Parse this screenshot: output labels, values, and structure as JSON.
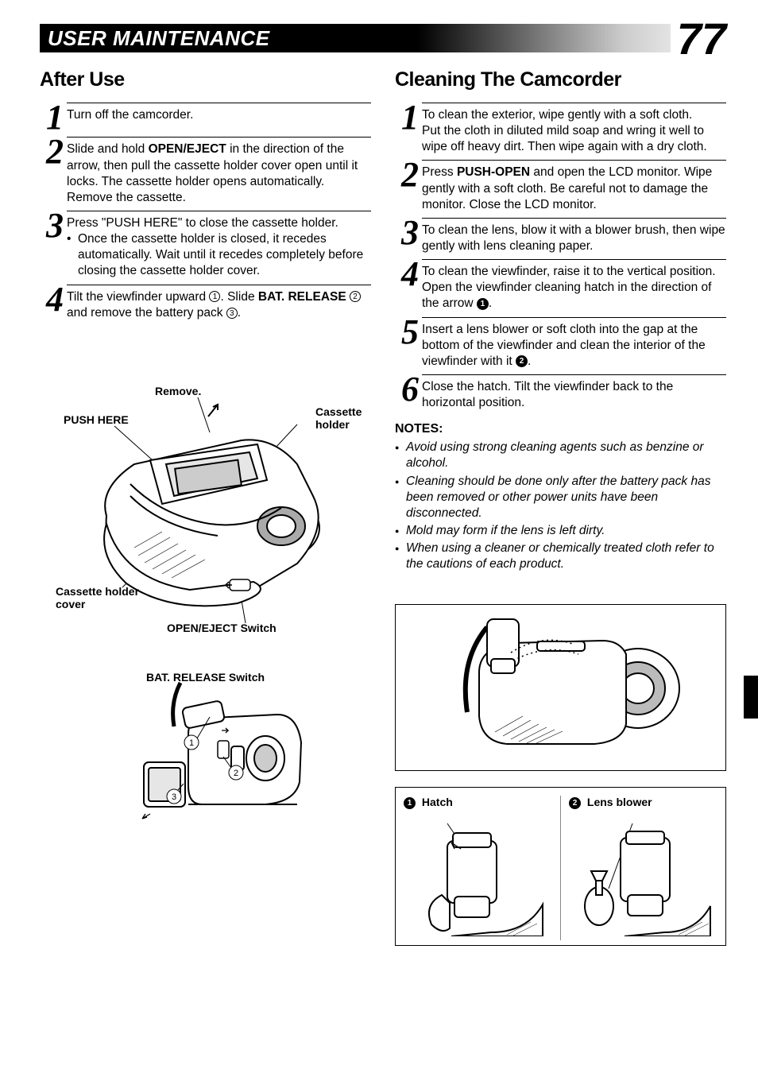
{
  "page_number": "77",
  "header": "USER MAINTENANCE",
  "left": {
    "title": "After Use",
    "steps": [
      {
        "n": "1",
        "html": "Turn off the camcorder."
      },
      {
        "n": "2",
        "html": "Slide and hold <b>OPEN/EJECT</b> in the direction of the arrow, then pull the cassette holder cover open until it locks. The cassette holder opens automatically. Remove the cassette."
      },
      {
        "n": "3",
        "html": "Press \"PUSH HERE\" to close the cassette holder.",
        "sub": "Once the cassette holder is closed, it recedes automatically. Wait until it recedes completely before closing the cassette holder cover."
      },
      {
        "n": "4",
        "html": "Tilt the viewfinder upward <span class='circ'>1</span>. Slide <b>BAT. RELEASE</b> <span class='circ'>2</span> and remove the battery pack <span class='circ'>3</span>."
      }
    ],
    "diagram1": {
      "labels": {
        "remove": "Remove.",
        "push_here": "PUSH HERE",
        "cassette_holder": "Cassette holder",
        "cassette_cover": "Cassette holder cover",
        "open_eject": "OPEN/EJECT Switch"
      }
    },
    "diagram2": {
      "title": "BAT. RELEASE Switch"
    }
  },
  "right": {
    "title": "Cleaning The Camcorder",
    "steps": [
      {
        "n": "1",
        "html": "To clean the exterior, wipe gently with a soft cloth.<br>Put the cloth in diluted mild soap and wring it well to wipe off heavy dirt. Then wipe again with a dry cloth."
      },
      {
        "n": "2",
        "html": "Press <b>PUSH-OPEN</b> and open the LCD monitor. Wipe gently with a soft cloth.  Be careful not to damage the monitor.  Close the LCD monitor."
      },
      {
        "n": "3",
        "html": "To clean the lens, blow it with a blower brush, then wipe gently with lens cleaning paper."
      },
      {
        "n": "4",
        "html": "To clean the viewfinder, raise it to the vertical position. Open the viewfinder cleaning hatch in the direction of the arrow <span class='circ-black'>1</span>."
      },
      {
        "n": "5",
        "html": "Insert a lens blower or soft cloth into the gap at the bottom of the viewfinder and clean the interior of the viewfinder with it <span class='circ-black'>2</span>."
      },
      {
        "n": "6",
        "html": "Close the hatch. Tilt the viewfinder back to the horizontal position."
      }
    ],
    "notes_title": "NOTES:",
    "notes": [
      "Avoid using strong cleaning agents such as benzine or alcohol.",
      "Cleaning should be done only after the battery pack has been removed or other power units have been disconnected.",
      "Mold may form if the lens is left dirty.",
      "When using a cleaner or chemically treated cloth refer to the cautions of each product."
    ],
    "bottom_labels": {
      "hatch": "Hatch",
      "lens_blower": "Lens blower"
    }
  }
}
